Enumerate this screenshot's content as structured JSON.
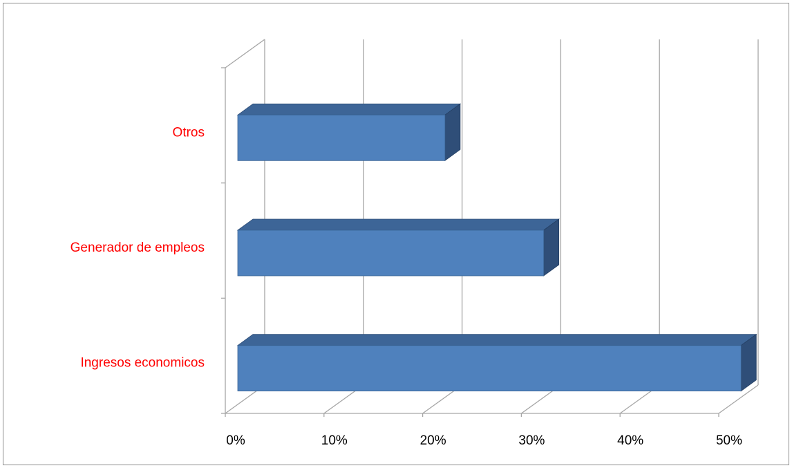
{
  "chart_data": {
    "type": "bar",
    "orientation": "horizontal",
    "style": "3d",
    "categories": [
      "Ingresos economicos",
      "Generador de empleos",
      "Otros"
    ],
    "values": [
      0.51,
      0.31,
      0.21
    ],
    "xlim": [
      0,
      0.5
    ],
    "xticks": [
      "0%",
      "10%",
      "20%",
      "30%",
      "40%",
      "50%"
    ],
    "grid": true,
    "legend": "none",
    "colors": {
      "bar_front": "#4f81bd",
      "bar_top": "#3d6597",
      "bar_side": "#2f4e78",
      "category_label": "#ff0000",
      "tick_label": "#000000",
      "gridline": "#a6a6a6"
    }
  }
}
